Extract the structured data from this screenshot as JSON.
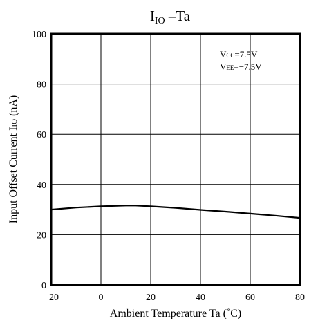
{
  "chart_data": {
    "type": "line",
    "title": {
      "main": "I",
      "sub": "IO",
      "rest": " –Ta"
    },
    "xlabel": "Ambient Temperature  Ta (˚C)",
    "ylabel": {
      "pre": "Input Offset Current  I",
      "sub": "IO",
      "post": " (nA)"
    },
    "xlim": [
      -20,
      80
    ],
    "ylim": [
      0,
      100
    ],
    "x_ticks": [
      -20,
      0,
      20,
      40,
      60,
      80
    ],
    "x_tick_labels": [
      "−20",
      "0",
      "20",
      "40",
      "60",
      "80"
    ],
    "y_ticks": [
      0,
      20,
      40,
      60,
      80,
      100
    ],
    "y_tick_labels": [
      "0",
      "20",
      "40",
      "60",
      "80",
      "100"
    ],
    "grid": true,
    "annotations": [
      {
        "main": "V",
        "sub": "CC",
        "rest": "=7.5V"
      },
      {
        "main": "V",
        "sub": "EE",
        "rest": "=−7.5V"
      }
    ],
    "series": [
      {
        "x": [
          -20,
          -10,
          0,
          10,
          14,
          20,
          30,
          40,
          50,
          60,
          70,
          80
        ],
        "y": [
          30.0,
          30.8,
          31.3,
          31.6,
          31.6,
          31.3,
          30.7,
          29.9,
          29.2,
          28.4,
          27.6,
          26.7
        ]
      }
    ]
  }
}
